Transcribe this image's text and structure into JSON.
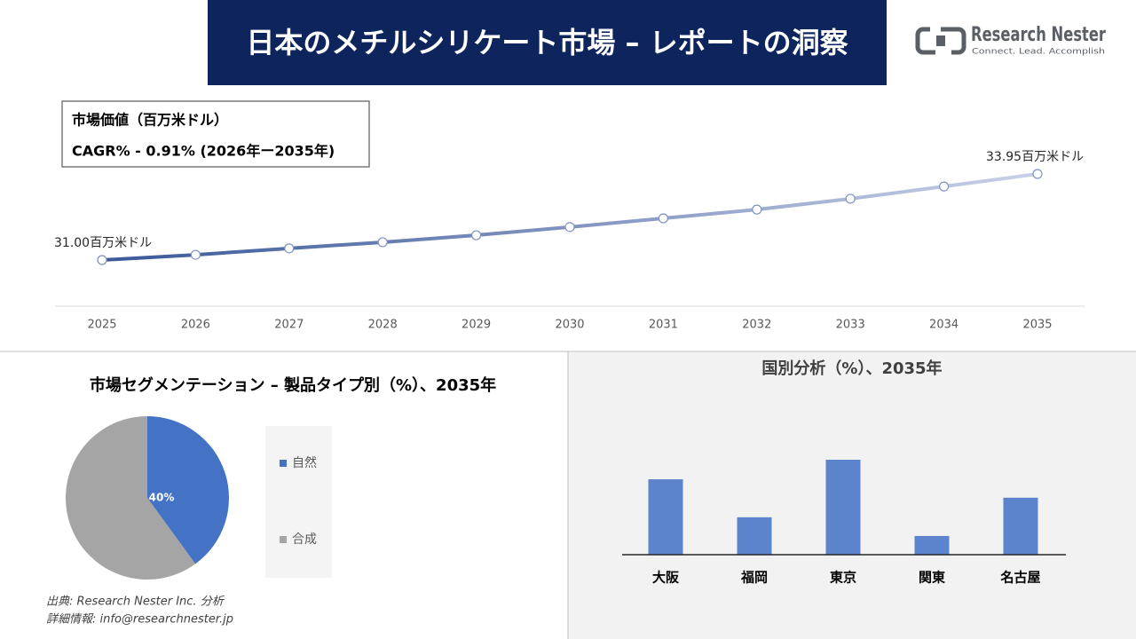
{
  "header": {
    "title": "日本のメチルシリケート市場 – レポートの洞察"
  },
  "logo": {
    "name": "Research Nester",
    "tagline": "Connect. Lead. Accomplish"
  },
  "chart_data": [
    {
      "type": "line",
      "subtitle": "市場価値（百万米ドル）",
      "annotation": "CAGR% - 0.91% (2026年ー2035年)",
      "x": [
        2025,
        2026,
        2027,
        2028,
        2029,
        2030,
        2031,
        2032,
        2033,
        2034,
        2035
      ],
      "values": [
        31.0,
        31.18,
        31.4,
        31.61,
        31.85,
        32.13,
        32.43,
        32.73,
        33.1,
        33.52,
        33.95
      ],
      "value_labels": [
        "31.00百万米ドル",
        null,
        null,
        null,
        null,
        null,
        null,
        null,
        null,
        null,
        "33.95百万米ドル"
      ],
      "color": "#3a5898",
      "color_end": "#c9d1e7"
    },
    {
      "type": "pie",
      "title": "市場セグメンテーション – 製品タイプ別（%）、2035年",
      "categories": [
        "自然",
        "合成"
      ],
      "values": [
        40,
        60
      ],
      "value_labels": [
        "40%",
        null
      ],
      "colors": [
        "#4472c4",
        "#a5a5a5"
      ]
    },
    {
      "type": "bar",
      "title": "国別分析（%）、2035年",
      "categories": [
        "大阪",
        "福岡",
        "東京",
        "関東",
        "名古屋"
      ],
      "values": [
        26.6,
        13.2,
        33.5,
        6.6,
        20.1
      ],
      "color": "#5b84cc"
    }
  ],
  "footer": {
    "source": "出典: Research Nester Inc. 分析",
    "contact": "詳細情報: info@researchnester.jp"
  }
}
